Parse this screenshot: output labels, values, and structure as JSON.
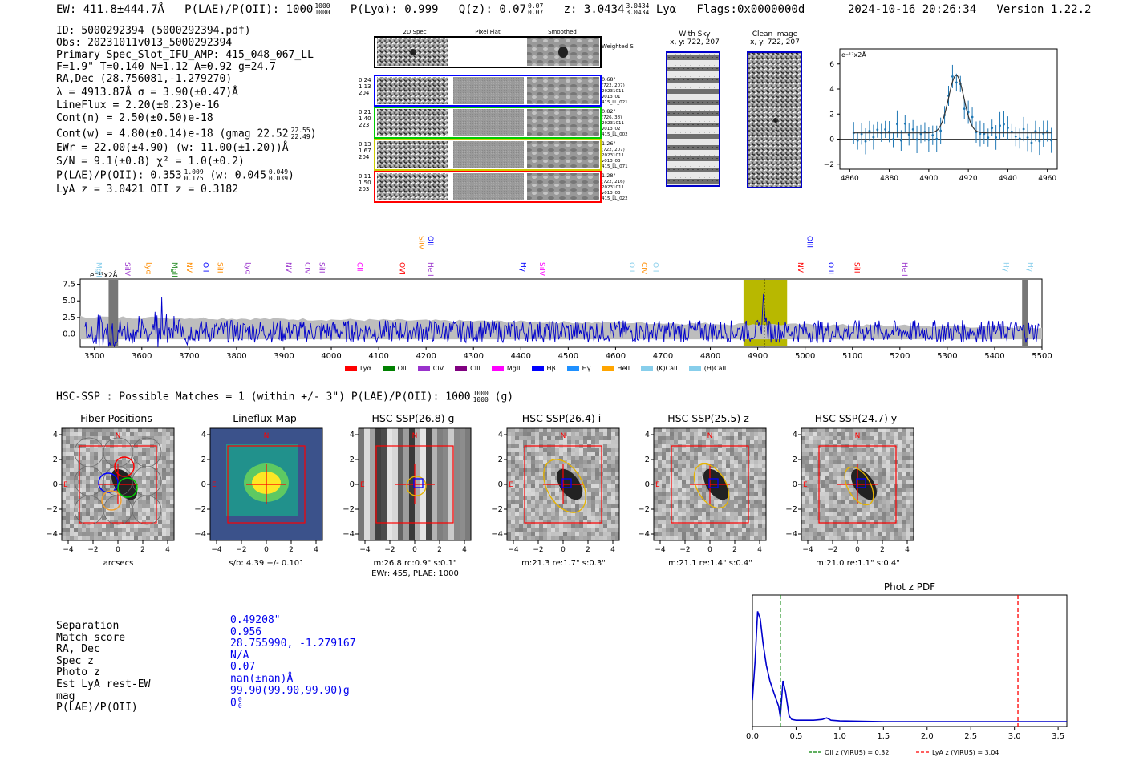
{
  "header": {
    "ew": "EW: 411.8±444.7Å",
    "plae_label": "P(LAE)/P(OII): 1000",
    "plae_sup": "1000",
    "plae_sub": "1000",
    "plya": "P(Lyα): 0.999",
    "qz_label": "Q(z): 0.07",
    "qz_sup": "0.07",
    "qz_sub": "0.07",
    "z_label": "z: 3.0434",
    "z_sup": "3.0434",
    "z_sub": "3.0434",
    "z_line": "Lyα",
    "flags": "Flags:0x0000000d",
    "datetime": "2024-10-16 20:26:34",
    "version": "Version 1.22.2"
  },
  "info": {
    "lines": [
      "ID: 5000292394 (5000292394.pdf)",
      "Obs: 20231011v013_5000292394",
      "Primary Spec_Slot_IFU_AMP: 415_048_067_LL",
      "F=1.9\"  T=0.140  N=1.12  A=0.92  g=24.7",
      "RA,Dec (28.756081,-1.279270)",
      "λ = 4913.87Å  σ = 3.90(±0.47)Å",
      "LineFlux = 2.20(±0.23)e-16",
      "Cont(n) = 2.50(±0.50)e-18"
    ],
    "contw": "Cont(w) = 4.80(±0.14)e-18 (gmag 22.52",
    "contw_sup": "22.55",
    "contw_sub": "22.49",
    "ewr": "EWr = 22.00(±4.90) (w: 11.00(±1.20))Å",
    "sn": "S/N = 9.1(±0.8)  χ² = 1.0(±0.2)",
    "plae2": "P(LAE)/P(OII): 0.353",
    "plae2_sup": "1.009",
    "plae2_sub": "0.175",
    "plae2_w": "(w: 0.045",
    "plae2_w_sup": "0.049",
    "plae2_w_sub": "0.039",
    "lyaz": "LyA z = 3.0421  OII z = 0.3182"
  },
  "cutouts": {
    "col_labels": [
      "2D Spec",
      "Pixel Flat",
      "Smoothed"
    ],
    "weighted_sum": "Weighted Sum",
    "rows": [
      {
        "left": [
          "0.24",
          "1.13",
          "204"
        ],
        "right": [
          "0.68\"",
          "(722, 207)",
          "20231011",
          "v013_01",
          "415_LL_021"
        ],
        "color": "#0000ff"
      },
      {
        "left": [
          "0.21",
          "1.40",
          "223"
        ],
        "right": [
          "0.82\"",
          "(726, 38)",
          "20231011",
          "v013_02",
          "415_LL_002"
        ],
        "color": "#00cc00"
      },
      {
        "left": [
          "0.13",
          "1.67",
          "204"
        ],
        "right": [
          "1.26\"",
          "(722, 207)",
          "20231011",
          "v013_03",
          "415_LL_071"
        ],
        "color": "#cccc00"
      },
      {
        "left": [
          "0.11",
          "1.50",
          "203"
        ],
        "right": [
          "1.28\"",
          "(722, 216)",
          "20231011",
          "v013_03",
          "415_LL_022"
        ],
        "color": "#ff0000"
      }
    ],
    "with_sky": "With Sky",
    "clean_image": "Clean Image",
    "xy_label": "x, y: 722, 207"
  },
  "zoom_chart": {
    "unit_label": "e⁻¹⁷x2Å",
    "x_ticks": [
      "4860",
      "4880",
      "4900",
      "4920",
      "4940",
      "4960"
    ],
    "y_ticks": [
      "6",
      "4",
      "2",
      "0",
      "−2"
    ]
  },
  "spectrum": {
    "unit_label": "e⁻¹⁷x2Å",
    "y_ticks": [
      "7.5",
      "5.0",
      "2.5",
      "0.0"
    ],
    "x_ticks": [
      "3500",
      "3600",
      "3700",
      "3800",
      "3900",
      "4000",
      "4100",
      "4200",
      "4300",
      "4400",
      "4500",
      "4600",
      "4700",
      "4800",
      "4900",
      "5000",
      "5100",
      "5200",
      "5300",
      "5400",
      "5500"
    ],
    "line_labels": [
      {
        "t": "MgII",
        "c": "#87ceeb"
      },
      {
        "t": "SiIV",
        "c": "#9932cc"
      },
      {
        "t": "Lyα",
        "c": "#ff8c00"
      },
      {
        "t": "MgII",
        "c": "#228b22"
      },
      {
        "t": "NV",
        "c": "#ff8c00"
      },
      {
        "t": "OII",
        "c": "#0000ff"
      },
      {
        "t": "SiII",
        "c": "#ff8c00"
      },
      {
        "t": "Lyα",
        "c": "#9932cc"
      },
      {
        "t": "NV",
        "c": "#9932cc"
      },
      {
        "t": "CIV",
        "c": "#9932cc"
      },
      {
        "t": "SiII",
        "c": "#9932cc"
      },
      {
        "t": "CII",
        "c": "#ff00ff"
      },
      {
        "t": "OVI",
        "c": "#ff0000"
      },
      {
        "t": "SiIV",
        "c": "#ff8c00"
      },
      {
        "t": "HeII",
        "c": "#9932cc"
      },
      {
        "t": "OII",
        "c": "#0000ff"
      },
      {
        "t": "Hγ",
        "c": "#0000ff"
      },
      {
        "t": "SiIV",
        "c": "#ff00ff"
      },
      {
        "t": "OII",
        "c": "#87ceeb"
      },
      {
        "t": "CIV",
        "c": "#ff8c00"
      },
      {
        "t": "OII",
        "c": "#87ceeb"
      },
      {
        "t": "NV",
        "c": "#ff0000"
      },
      {
        "t": "OIII",
        "c": "#0000ff"
      },
      {
        "t": "OIII",
        "c": "#0000ff"
      },
      {
        "t": "SiII",
        "c": "#ff0000"
      },
      {
        "t": "HeII",
        "c": "#9932cc"
      },
      {
        "t": "Hγ",
        "c": "#87ceeb"
      },
      {
        "t": "Hγ",
        "c": "#87ceeb"
      }
    ],
    "legend": [
      {
        "name": "Lyα",
        "color": "#ff0000"
      },
      {
        "name": "OII",
        "color": "#008000"
      },
      {
        "name": "CIV",
        "color": "#9932cc"
      },
      {
        "name": "CIII",
        "color": "#800080"
      },
      {
        "name": "MgII",
        "color": "#ff00ff"
      },
      {
        "name": "Hβ",
        "color": "#0000ff"
      },
      {
        "name": "Hγ",
        "color": "#1e90ff"
      },
      {
        "name": "HeII",
        "color": "#ffa500"
      },
      {
        "name": "(K)CaII",
        "color": "#87ceeb"
      },
      {
        "name": "(H)CaII",
        "color": "#87ceeb"
      }
    ]
  },
  "hsc": {
    "title": "HSC-SSP : Possible Matches = 1 (within +/- 3\")  P(LAE)/P(OII): 1000",
    "title_sup": "1000",
    "title_sub": "1000",
    "title_filter": "(g)",
    "panels": [
      {
        "title": "Fiber Positions",
        "caption": "arcsecs",
        "caption2": ""
      },
      {
        "title": "Lineflux Map",
        "caption": "s/b: 4.39 +/- 0.101",
        "caption2": ""
      },
      {
        "title": "HSC SSP(26.8) g",
        "caption": "m:26.8 rc:0.9\"  s:0.1\"",
        "caption2": "EWr: 455, PLAE: 1000"
      },
      {
        "title": "HSC SSP(26.4) i",
        "caption": "m:21.3  re:1.7\"  s:0.3\"",
        "caption2": ""
      },
      {
        "title": "HSC SSP(25.5) z",
        "caption": "m:21.1  re:1.4\"  s:0.4\"",
        "caption2": ""
      },
      {
        "title": "HSC SSP(24.7) y",
        "caption": "m:21.0  re:1.1\"  s:0.4\"",
        "caption2": ""
      }
    ],
    "axis_ticks": [
      "−4",
      "−2",
      "0",
      "2",
      "4"
    ],
    "y_ticks": [
      "4",
      "2",
      "0",
      "−2",
      "−4"
    ],
    "n_label": "N",
    "e_label": "E"
  },
  "match": {
    "labels": [
      "Separation",
      "Match score",
      "RA, Dec",
      "Spec z",
      "Photo z",
      "Est LyA rest-EW",
      "mag",
      "P(LAE)/P(OII)"
    ],
    "values": [
      "0.49208\"",
      "0.956",
      "28.755990, -1.279167",
      "N/A",
      "0.07",
      "nan(±nan)Å",
      "99.90(99.90,99.90)g",
      "0"
    ],
    "last_sup": "0",
    "last_sub": "0"
  },
  "photoz": {
    "title": "Phot z PDF",
    "x_ticks": [
      "0.0",
      "0.5",
      "1.0",
      "1.5",
      "2.0",
      "2.5",
      "3.0",
      "3.5"
    ],
    "legend_oii": "OII z (VIRUS) = 0.32",
    "legend_lya": "LyA z (VIRUS) = 3.04",
    "chart_data": {
      "type": "line",
      "x": [
        0.0,
        0.03,
        0.06,
        0.09,
        0.12,
        0.16,
        0.2,
        0.25,
        0.3,
        0.32,
        0.35,
        0.38,
        0.42,
        0.45,
        0.5,
        0.6,
        0.7,
        0.8,
        0.85,
        0.9,
        1.0,
        1.5,
        2.0,
        2.5,
        3.0,
        3.6
      ],
      "values": [
        0.3,
        0.8,
        1.45,
        1.35,
        1.05,
        0.75,
        0.55,
        0.38,
        0.22,
        0.08,
        0.55,
        0.4,
        0.1,
        0.05,
        0.04,
        0.04,
        0.04,
        0.05,
        0.07,
        0.04,
        0.03,
        0.02,
        0.02,
        0.02,
        0.02,
        0.02
      ],
      "xlim": [
        0,
        3.6
      ],
      "oii_z": 0.32,
      "lya_z": 3.04
    }
  },
  "colors": {
    "blue": "#0000cc",
    "red": "#ff0000",
    "olive": "#b8b800"
  }
}
